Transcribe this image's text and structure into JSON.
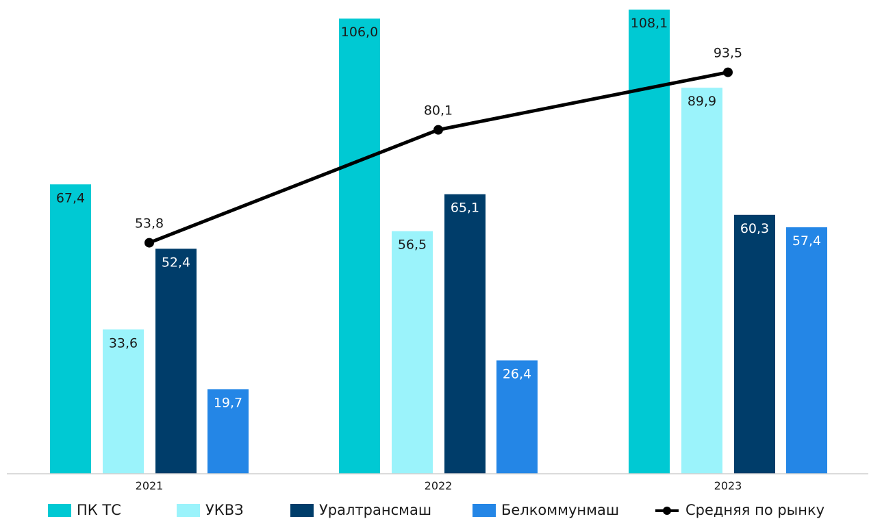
{
  "chart_data": {
    "type": "bar",
    "categories": [
      "2021",
      "2022",
      "2023"
    ],
    "series": [
      {
        "name": "ПК ТС",
        "values": [
          67.4,
          106.0,
          108.1
        ],
        "labels": [
          "67,4",
          "106,0",
          "108,1"
        ],
        "color": "#00C9D3",
        "label_color": "#1a1a1a"
      },
      {
        "name": "УКВЗ",
        "values": [
          33.6,
          56.5,
          89.9
        ],
        "labels": [
          "33,6",
          "56,5",
          "89,9"
        ],
        "color": "#9BF3FB",
        "label_color": "#1a1a1a"
      },
      {
        "name": "Уралтрансмаш",
        "values": [
          52.4,
          65.1,
          60.3
        ],
        "labels": [
          "52,4",
          "65,1",
          "60,3"
        ],
        "color": "#003D6A",
        "label_color": "#ffffff"
      },
      {
        "name": "Белкоммунмаш",
        "values": [
          19.7,
          26.4,
          57.4
        ],
        "labels": [
          "19,7",
          "26,4",
          "57,4"
        ],
        "color": "#2486E6",
        "label_color": "#ffffff"
      }
    ],
    "line_series": {
      "name": "Средняя по рынку",
      "type": "line",
      "values": [
        53.8,
        80.1,
        93.5
      ],
      "labels": [
        "53,8",
        "80,1",
        "93,5"
      ],
      "color": "#000000"
    },
    "legend_position": "bottom",
    "grid": false,
    "ylim": [
      0,
      108.1
    ]
  }
}
